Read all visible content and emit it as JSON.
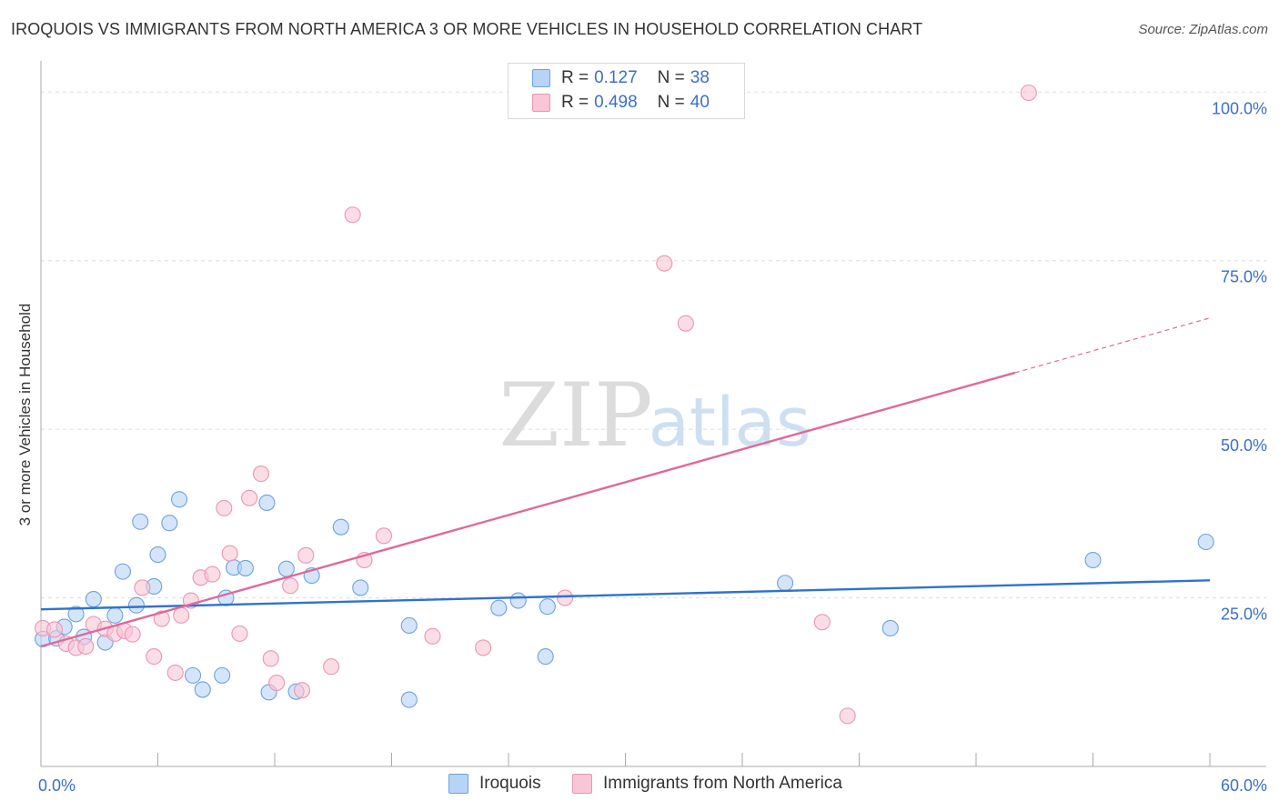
{
  "header": {
    "title": "IROQUOIS VS IMMIGRANTS FROM NORTH AMERICA 3 OR MORE VEHICLES IN HOUSEHOLD CORRELATION CHART",
    "source": "Source: ZipAtlas.com"
  },
  "watermark": {
    "zip": "ZIP",
    "atlas": "atlas"
  },
  "legend": {
    "rows": [
      {
        "r_label": "R =",
        "r_value": "0.127",
        "n_label": "N =",
        "n_value": "38"
      },
      {
        "r_label": "R =",
        "r_value": "0.498",
        "n_label": "N =",
        "n_value": "40"
      }
    ]
  },
  "bottom_legend": {
    "series1": "Iroquois",
    "series2": "Immigrants from North America"
  },
  "colors": {
    "blue_fill": "#b7d3f5",
    "blue_stroke": "#6fa1e0",
    "blue_line": "#2f72cf",
    "pink_fill": "#f8c6d6",
    "pink_stroke": "#ec95b2",
    "pink_line": "#e0689a",
    "tick_text": "#3a6fce"
  },
  "chart_data": {
    "type": "scatter",
    "title": "IROQUOIS VS IMMIGRANTS FROM NORTH AMERICA 3 OR MORE VEHICLES IN HOUSEHOLD CORRELATION CHART",
    "xlabel": "",
    "ylabel": "3 or more Vehicles in Household",
    "xlim": [
      0,
      60
    ],
    "ylim": [
      0,
      103
    ],
    "x_tick_labels": [
      {
        "value": 0,
        "label": "0.0%"
      },
      {
        "value": 60,
        "label": "60.0%"
      }
    ],
    "y_ticks": [
      {
        "value": 25,
        "label": "25.0%"
      },
      {
        "value": 50,
        "label": "50.0%"
      },
      {
        "value": 75,
        "label": "75.0%"
      },
      {
        "value": 100,
        "label": "100.0%"
      }
    ],
    "x_minor_ticks": [
      6,
      12,
      18,
      24,
      30,
      36,
      42,
      48,
      54,
      60
    ],
    "series": [
      {
        "name": "Iroquois",
        "r": 0.127,
        "n": 38,
        "trend": {
          "x0": 0,
          "y0": 23.3,
          "x1": 60,
          "y1": 27.6,
          "dash_from": null
        },
        "points": [
          [
            0.1,
            18.9
          ],
          [
            0.8,
            19.0
          ],
          [
            1.2,
            20.7
          ],
          [
            1.8,
            22.6
          ],
          [
            2.2,
            19.2
          ],
          [
            2.7,
            24.8
          ],
          [
            3.3,
            18.4
          ],
          [
            3.8,
            22.4
          ],
          [
            4.2,
            28.9
          ],
          [
            4.9,
            23.9
          ],
          [
            5.1,
            36.3
          ],
          [
            5.8,
            26.7
          ],
          [
            6.0,
            31.4
          ],
          [
            6.6,
            36.1
          ],
          [
            7.1,
            39.6
          ],
          [
            7.8,
            13.5
          ],
          [
            8.3,
            11.4
          ],
          [
            9.3,
            13.5
          ],
          [
            9.5,
            25.0
          ],
          [
            9.9,
            29.5
          ],
          [
            10.5,
            29.4
          ],
          [
            11.6,
            39.1
          ],
          [
            11.7,
            11.0
          ],
          [
            12.6,
            29.3
          ],
          [
            13.1,
            11.1
          ],
          [
            13.9,
            28.3
          ],
          [
            15.4,
            35.5
          ],
          [
            16.4,
            26.5
          ],
          [
            18.9,
            20.9
          ],
          [
            18.9,
            9.9
          ],
          [
            23.5,
            23.5
          ],
          [
            24.5,
            24.6
          ],
          [
            25.9,
            16.3
          ],
          [
            26.0,
            23.7
          ],
          [
            38.2,
            27.2
          ],
          [
            43.6,
            20.5
          ],
          [
            54.0,
            30.6
          ],
          [
            59.8,
            33.3
          ]
        ]
      },
      {
        "name": "Immigrants from North America",
        "r": 0.498,
        "n": 40,
        "trend": {
          "x0": 0,
          "y0": 17.8,
          "x1": 60,
          "y1": 66.5,
          "dash_from": 50
        },
        "points": [
          [
            0.1,
            20.5
          ],
          [
            0.7,
            20.3
          ],
          [
            1.3,
            18.2
          ],
          [
            1.8,
            17.6
          ],
          [
            2.3,
            17.8
          ],
          [
            2.7,
            21.1
          ],
          [
            3.3,
            20.4
          ],
          [
            3.8,
            19.7
          ],
          [
            4.3,
            20.1
          ],
          [
            4.7,
            19.6
          ],
          [
            5.2,
            26.5
          ],
          [
            5.8,
            16.3
          ],
          [
            6.2,
            21.9
          ],
          [
            6.9,
            13.9
          ],
          [
            7.2,
            22.4
          ],
          [
            7.7,
            24.6
          ],
          [
            8.2,
            28.0
          ],
          [
            8.8,
            28.5
          ],
          [
            9.4,
            38.3
          ],
          [
            9.7,
            31.6
          ],
          [
            10.2,
            19.7
          ],
          [
            10.7,
            39.8
          ],
          [
            11.3,
            43.4
          ],
          [
            11.8,
            16.0
          ],
          [
            12.1,
            12.4
          ],
          [
            12.8,
            26.8
          ],
          [
            13.4,
            11.3
          ],
          [
            13.6,
            31.3
          ],
          [
            14.9,
            14.8
          ],
          [
            16.0,
            81.8
          ],
          [
            16.6,
            30.6
          ],
          [
            17.6,
            34.2
          ],
          [
            20.1,
            19.3
          ],
          [
            22.7,
            17.6
          ],
          [
            26.9,
            25.0
          ],
          [
            32.0,
            74.6
          ],
          [
            33.1,
            65.7
          ],
          [
            40.1,
            21.4
          ],
          [
            41.4,
            7.5
          ],
          [
            50.7,
            99.9
          ]
        ]
      }
    ]
  }
}
